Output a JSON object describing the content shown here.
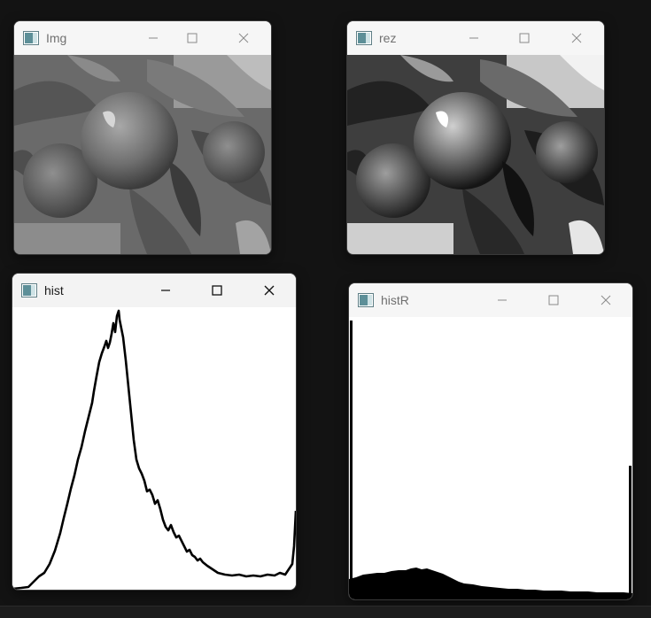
{
  "windows": [
    {
      "id": "img",
      "title": "Img",
      "active": false
    },
    {
      "id": "rez",
      "title": "rez",
      "active": false
    },
    {
      "id": "hist",
      "title": "hist",
      "active": true
    },
    {
      "id": "histR",
      "title": "histR",
      "active": false
    }
  ],
  "icons": {
    "app": "opencv-window-icon",
    "minimize": "minimize-icon",
    "maximize": "maximize-icon",
    "close": "close-icon"
  },
  "colors": {
    "desktop": "#131313",
    "titlebar": "#f3f3f3",
    "histogram": "#000000",
    "canvas": "#ffffff"
  }
}
